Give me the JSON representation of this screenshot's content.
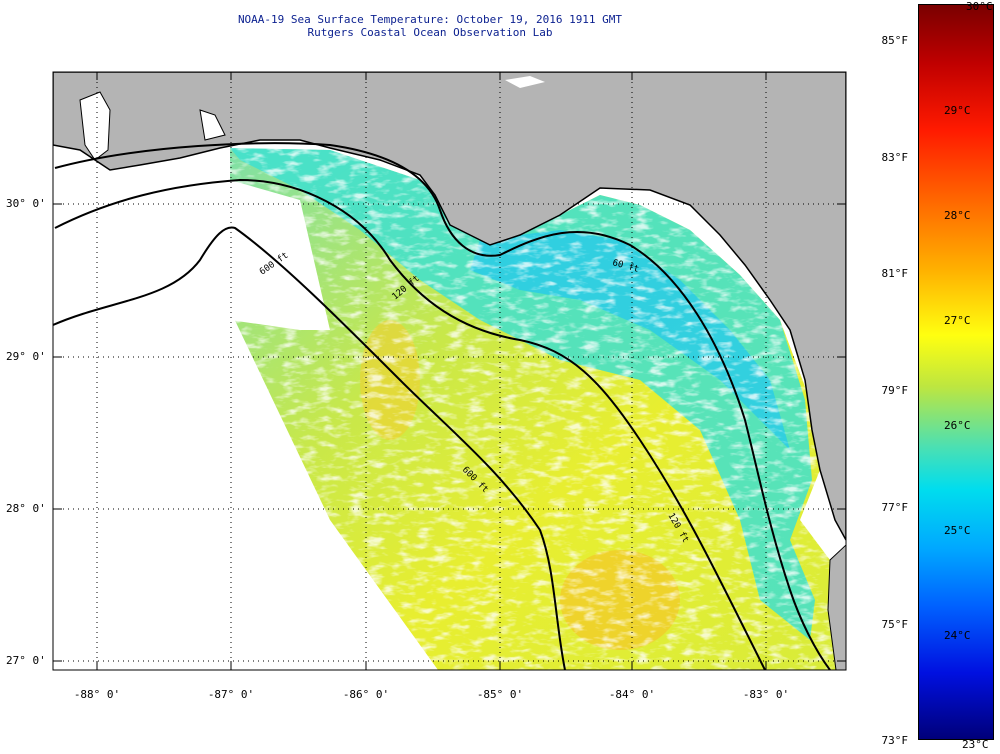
{
  "header": {
    "title": "NOAA-19 Sea Surface Temperature:  October 19, 2016 1911 GMT",
    "subtitle": "Rutgers Coastal Ocean Observation Lab"
  },
  "map": {
    "lat_labels": [
      "30° 0'",
      "29° 0'",
      "28° 0'",
      "27° 0'"
    ],
    "lon_labels": [
      "-88° 0'",
      "-87° 0'",
      "-86° 0'",
      "-85° 0'",
      "-84° 0'",
      "-83° 0'"
    ],
    "contours": [
      "60 ft",
      "120 ft",
      "600 ft"
    ],
    "colors": {
      "land": "#b4b4b4",
      "coast": "#000000",
      "grid": "#000000"
    }
  },
  "colorbar": {
    "fahrenheit_labels": [
      "85°F",
      "83°F",
      "81°F",
      "79°F",
      "77°F",
      "75°F",
      "73°F"
    ],
    "celsius_labels": [
      "30°C",
      "29°C",
      "28°C",
      "27°C",
      "26°C",
      "25°C",
      "24°C",
      "23°C"
    ],
    "colors": [
      "#7a0000",
      "#ff0000",
      "#ff8000",
      "#ffff00",
      "#00e0e0",
      "#0070ff",
      "#00007a"
    ]
  }
}
